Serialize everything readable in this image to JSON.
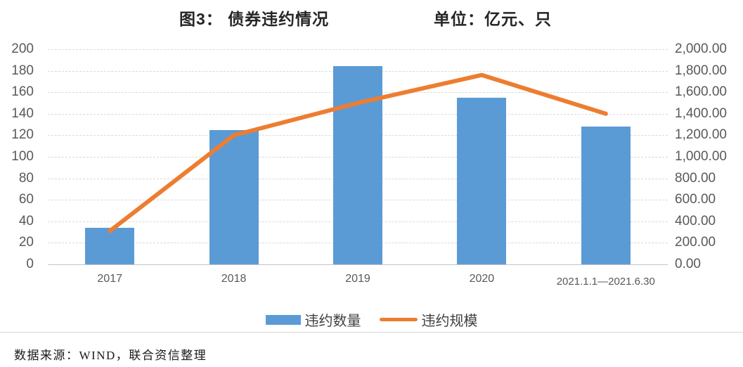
{
  "header": {
    "title": "图3：  债券违约情况",
    "unit": "单位：亿元、只"
  },
  "footer": {
    "source": "数据来源：WIND，联合资信整理"
  },
  "chart_data": {
    "type": "combo",
    "title": "图3： 债券违约情况",
    "subtitle": "单位：亿元、只",
    "categories": [
      "2017",
      "2018",
      "2019",
      "2020",
      "2021.1.1—2021.6.30"
    ],
    "series": [
      {
        "name": "违约数量",
        "kind": "bar",
        "axis": "left",
        "color": "#5B9BD5",
        "values": [
          34,
          125,
          184,
          155,
          128
        ]
      },
      {
        "name": "违约规模",
        "kind": "line",
        "axis": "right",
        "color": "#ED7D31",
        "values": [
          310,
          1200,
          1500,
          1760,
          1400
        ]
      }
    ],
    "left_axis": {
      "min": 0,
      "max": 200,
      "step": 20,
      "tick_labels": [
        "200",
        "180",
        "160",
        "140",
        "120",
        "100",
        "80",
        "60",
        "40",
        "20",
        "0"
      ]
    },
    "right_axis": {
      "min": 0,
      "max": 2000,
      "step": 200,
      "tick_labels": [
        "2,000.00",
        "1,800.00",
        "1,600.00",
        "1,400.00",
        "1,200.00",
        "1,000.00",
        "800.00",
        "600.00",
        "400.00",
        "200.00",
        "0.00"
      ]
    },
    "grid": true,
    "gridline_color": "#d9d9d9",
    "axis_text_color": "#595959",
    "legend_position": "bottom"
  }
}
